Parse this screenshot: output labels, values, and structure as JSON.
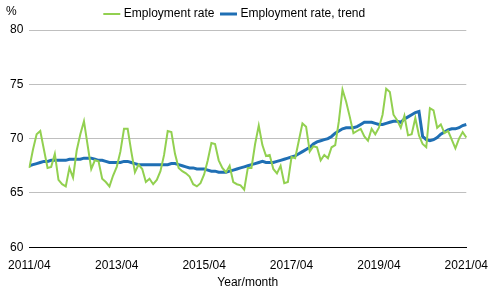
{
  "chart_data": {
    "type": "line",
    "x_label": "Year/month",
    "y_label": "%",
    "categories": [
      "2011/04",
      null,
      null,
      null,
      null,
      null,
      null,
      null,
      null,
      null,
      null,
      null,
      null,
      null,
      null,
      null,
      null,
      null,
      null,
      null,
      null,
      null,
      null,
      null,
      "2013/04",
      null,
      null,
      null,
      null,
      null,
      null,
      null,
      null,
      null,
      null,
      null,
      null,
      null,
      null,
      null,
      null,
      null,
      null,
      null,
      null,
      null,
      null,
      null,
      "2015/04",
      null,
      null,
      null,
      null,
      null,
      null,
      null,
      null,
      null,
      null,
      null,
      null,
      null,
      null,
      null,
      null,
      null,
      null,
      null,
      null,
      null,
      null,
      null,
      "2017/04",
      null,
      null,
      null,
      null,
      null,
      null,
      null,
      null,
      null,
      null,
      null,
      null,
      null,
      null,
      null,
      null,
      null,
      null,
      null,
      null,
      null,
      null,
      null,
      "2019/04",
      null,
      null,
      null,
      null,
      null,
      null,
      null,
      null,
      null,
      null,
      null,
      null,
      null,
      null,
      null,
      null,
      null,
      null,
      null,
      null,
      null,
      null,
      null,
      "2021/04"
    ],
    "series": [
      {
        "name": "Employment rate",
        "color": "#92d050",
        "values": [
          67.3,
          69.0,
          70.4,
          70.7,
          69.0,
          67.3,
          67.4,
          68.6,
          66.2,
          65.8,
          65.6,
          67.3,
          66.4,
          68.9,
          70.4,
          71.6,
          69.4,
          67.2,
          68.0,
          67.9,
          66.3,
          66.0,
          65.6,
          66.6,
          67.4,
          68.8,
          70.9,
          70.9,
          68.8,
          66.9,
          67.6,
          67.2,
          66.0,
          66.3,
          65.8,
          66.2,
          67.0,
          68.5,
          70.7,
          70.6,
          68.6,
          67.3,
          67.0,
          66.8,
          66.5,
          65.8,
          65.6,
          65.9,
          66.7,
          68.0,
          69.6,
          69.5,
          68.0,
          67.3,
          66.9,
          67.5,
          66.0,
          65.8,
          65.7,
          65.3,
          67.3,
          67.3,
          69.5,
          71.2,
          69.4,
          68.4,
          68.5,
          67.2,
          66.8,
          67.5,
          65.9,
          66.0,
          68.3,
          68.2,
          69.8,
          71.4,
          71.1,
          68.8,
          69.3,
          69.2,
          68.0,
          68.5,
          68.2,
          69.2,
          69.4,
          71.6,
          74.5,
          73.4,
          72.0,
          70.5,
          70.7,
          70.9,
          70.2,
          69.8,
          70.9,
          70.4,
          71.0,
          72.2,
          74.6,
          74.3,
          72.2,
          71.7,
          71.0,
          72.1,
          70.3,
          70.4,
          71.9,
          70.3,
          69.5,
          69.2,
          72.8,
          72.6,
          71.0,
          71.3,
          70.5,
          70.7,
          69.9,
          69.1,
          70.0,
          70.6,
          70.1
        ]
      },
      {
        "name": "Employment rate, trend",
        "color": "#1f6fb4",
        "values": [
          67.5,
          67.6,
          67.7,
          67.8,
          67.9,
          67.9,
          68.0,
          68.0,
          68.0,
          68.0,
          68.0,
          68.1,
          68.1,
          68.1,
          68.1,
          68.2,
          68.2,
          68.2,
          68.1,
          68.0,
          68.0,
          67.9,
          67.8,
          67.8,
          67.8,
          67.8,
          67.9,
          67.9,
          67.8,
          67.7,
          67.6,
          67.6,
          67.6,
          67.6,
          67.6,
          67.6,
          67.6,
          67.6,
          67.6,
          67.7,
          67.7,
          67.6,
          67.5,
          67.4,
          67.3,
          67.3,
          67.2,
          67.2,
          67.2,
          67.1,
          67.0,
          67.0,
          66.9,
          66.9,
          66.9,
          67.0,
          67.1,
          67.2,
          67.3,
          67.4,
          67.5,
          67.6,
          67.7,
          67.8,
          67.9,
          67.8,
          67.8,
          67.8,
          67.9,
          68.0,
          68.1,
          68.2,
          68.3,
          68.4,
          68.6,
          68.8,
          69.0,
          69.2,
          69.5,
          69.7,
          69.8,
          69.9,
          70.0,
          70.2,
          70.5,
          70.7,
          70.9,
          71.0,
          71.0,
          71.0,
          71.1,
          71.3,
          71.5,
          71.5,
          71.5,
          71.4,
          71.3,
          71.3,
          71.4,
          71.5,
          71.6,
          71.6,
          71.5,
          71.8,
          72.0,
          72.2,
          72.4,
          72.5,
          70.2,
          69.9,
          69.8,
          69.9,
          70.1,
          70.4,
          70.6,
          70.8,
          70.9,
          70.9,
          71.0,
          71.2,
          71.3
        ]
      }
    ],
    "ylim": [
      60,
      80
    ],
    "yticks": [
      60,
      65,
      70,
      75,
      80
    ],
    "grid": true,
    "legend": "top"
  }
}
